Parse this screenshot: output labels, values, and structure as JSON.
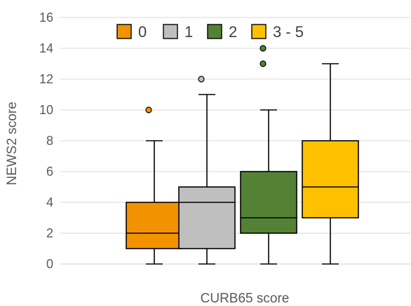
{
  "chart_data": {
    "type": "box",
    "title": "",
    "xlabel": "CURB65 score",
    "ylabel": "NEWS2 score",
    "ylim": [
      0,
      16
    ],
    "yticks": [
      0,
      2,
      4,
      6,
      8,
      10,
      12,
      14,
      16
    ],
    "grid": "horizontal",
    "legend_position": "top",
    "series": [
      {
        "name": "0",
        "color": "#F39200",
        "min": 0,
        "q1": 1,
        "median": 2,
        "q3": 4,
        "max": 8,
        "outliers": [
          10
        ]
      },
      {
        "name": "1",
        "color": "#BFBFBF",
        "min": 0,
        "q1": 1,
        "median": 4,
        "q3": 5,
        "max": 11,
        "outliers": [
          12
        ]
      },
      {
        "name": "2",
        "color": "#548235",
        "min": 0,
        "q1": 2,
        "median": 3,
        "q3": 6,
        "max": 10,
        "outliers": [
          13,
          14
        ]
      },
      {
        "name": "3 - 5",
        "color": "#FFC000",
        "min": 0,
        "q1": 3,
        "median": 5,
        "q3": 8,
        "max": 13,
        "outliers": []
      }
    ]
  }
}
